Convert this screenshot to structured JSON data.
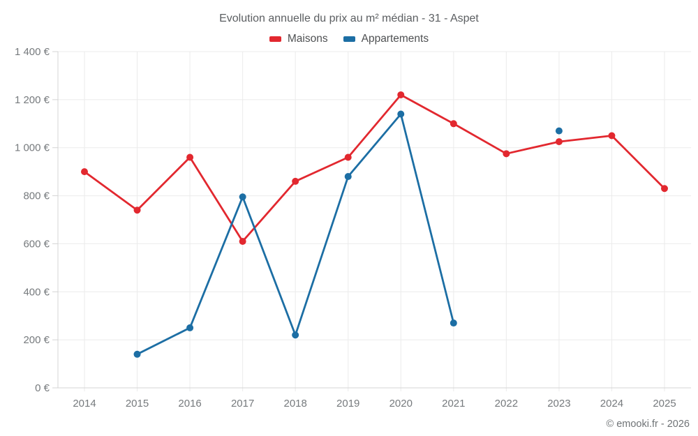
{
  "title": "Evolution annuelle du prix au m² médian - 31 - Aspet",
  "legend": [
    {
      "label": "Maisons",
      "color": "#e2282f"
    },
    {
      "label": "Appartements",
      "color": "#1c6ea4"
    }
  ],
  "copyright": "© emooki.fr - 2026",
  "colors": {
    "maisons": "#e2282f",
    "appartements": "#1c6ea4",
    "gridline": "#ebebeb",
    "axis": "#d4d4d4",
    "tick_text": "#767a7d"
  },
  "chart_data": {
    "type": "line",
    "title": "Evolution annuelle du prix au m² médian - 31 - Aspet",
    "xlabel": "",
    "ylabel": "",
    "categories": [
      "2014",
      "2015",
      "2016",
      "2017",
      "2018",
      "2019",
      "2020",
      "2021",
      "2022",
      "2023",
      "2024",
      "2025"
    ],
    "series": [
      {
        "name": "Maisons",
        "color": "#e2282f",
        "values": [
          900,
          740,
          960,
          610,
          860,
          960,
          1220,
          1100,
          975,
          1025,
          1050,
          830
        ]
      },
      {
        "name": "Appartements",
        "color": "#1c6ea4",
        "values": [
          null,
          140,
          250,
          795,
          220,
          880,
          1140,
          270,
          null,
          1070,
          null,
          null
        ]
      }
    ],
    "ylim": [
      0,
      1400
    ],
    "ytick_step": 200,
    "ytick_labels": [
      "0 €",
      "200 €",
      "400 €",
      "600 €",
      "800 €",
      "1 000 €",
      "1 200 €",
      "1 400 €"
    ],
    "grid": true,
    "legend_position": "top",
    "unit": "€"
  }
}
